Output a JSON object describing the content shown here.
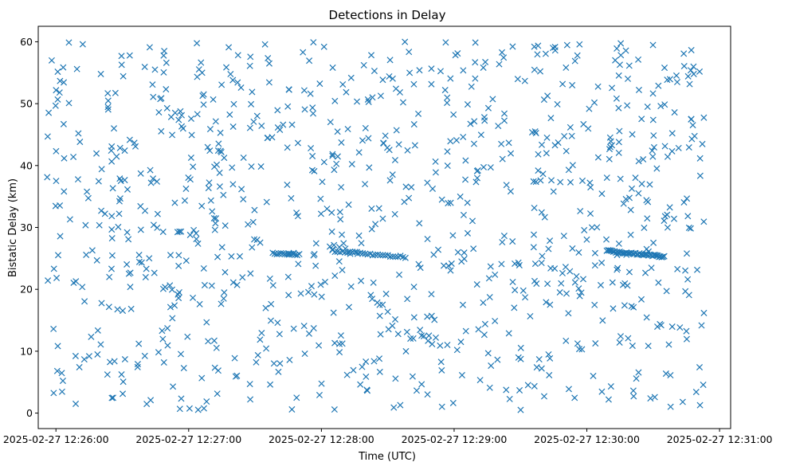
{
  "chart_data": {
    "type": "scatter",
    "title": "Detections in Delay",
    "xlabel": "Time (UTC)",
    "ylabel": "Bistatic Delay (km)",
    "x_ticks": [
      "2025-02-27 12:26:00",
      "2025-02-27 12:27:00",
      "2025-02-27 12:28:00",
      "2025-02-27 12:29:00",
      "2025-02-27 12:30:00",
      "2025-02-27 12:31:00"
    ],
    "y_ticks": [
      "0",
      "10",
      "20",
      "30",
      "40",
      "50",
      "60"
    ],
    "xlim": [
      "2025-02-27 12:25:52",
      "2025-02-27 12:31:05"
    ],
    "ylim": [
      -2.5,
      62.5
    ],
    "marker": "x",
    "grid": false,
    "colors": {
      "series": "#1f77b4"
    },
    "random_detections": {
      "x_range": [
        "2025-02-27 12:25:56",
        "2025-02-27 12:30:53"
      ],
      "y_range": [
        0.5,
        60
      ],
      "count": 950,
      "seed": 20250227
    },
    "tracks": [
      {
        "start": "2025-02-27 12:27:38",
        "end": "2025-02-27 12:27:50",
        "y_start": 25.8,
        "y_end": 25.6,
        "count": 14
      },
      {
        "start": "2025-02-27 12:28:05",
        "end": "2025-02-27 12:28:38",
        "y_start": 26.2,
        "y_end": 25.2,
        "count": 30
      },
      {
        "start": "2025-02-27 12:30:09",
        "end": "2025-02-27 12:30:35",
        "y_start": 26.2,
        "y_end": 25.3,
        "count": 45
      }
    ]
  }
}
